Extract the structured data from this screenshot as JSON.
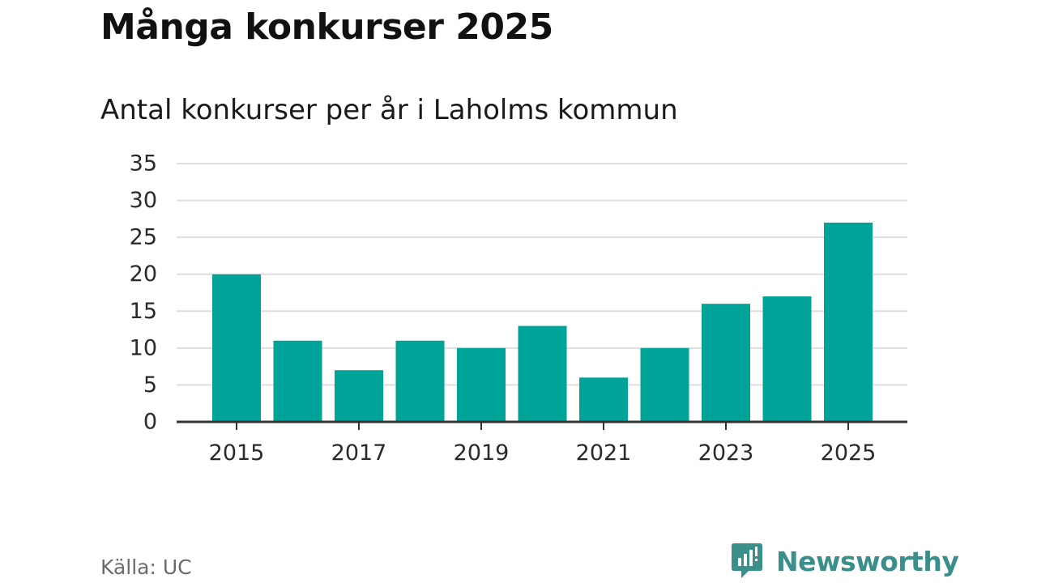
{
  "chart_data": {
    "type": "bar",
    "title": "Många konkurser 2025",
    "subtitle": "Antal konkurser per år i Laholms kommun",
    "categories": [
      "2015",
      "2016",
      "2017",
      "2018",
      "2019",
      "2020",
      "2021",
      "2022",
      "2023",
      "2024",
      "2025"
    ],
    "values": [
      20,
      11,
      7,
      11,
      10,
      13,
      6,
      10,
      16,
      17,
      27
    ],
    "x_tick_labels": [
      "2015",
      "2017",
      "2019",
      "2021",
      "2023",
      "2025"
    ],
    "y_tick_labels": [
      "0",
      "5",
      "10",
      "15",
      "20",
      "25",
      "30",
      "35"
    ],
    "ylim": [
      0,
      35
    ],
    "xlabel": "",
    "ylabel": "",
    "grid": true,
    "bar_color": "#00a398",
    "grid_color": "#dedede",
    "axis_color": "#333333"
  },
  "footer": {
    "source": "Källa: UC",
    "brand": "Newsworthy",
    "brand_icon": "newsworthy-logo-icon",
    "brand_color": "#3a8f8a"
  }
}
